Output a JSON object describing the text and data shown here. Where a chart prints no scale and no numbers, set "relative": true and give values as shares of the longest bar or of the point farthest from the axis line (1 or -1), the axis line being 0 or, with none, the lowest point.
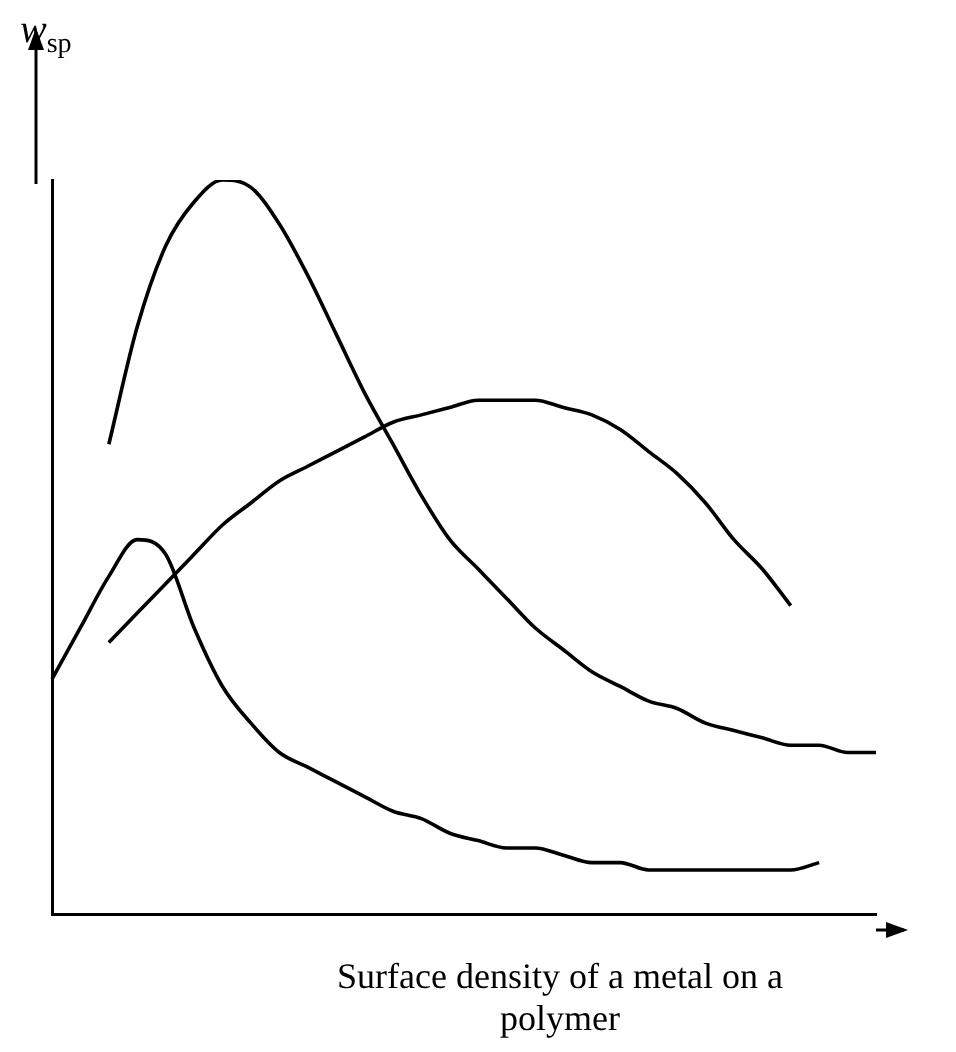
{
  "chart_data": {
    "type": "line",
    "relative": true,
    "tick_labels": false,
    "xlabel": "Surface density of a metal on a polymer",
    "ylabel": "w$_{sp}$",
    "categories": [
      null,
      null,
      null,
      null,
      null,
      null,
      null,
      null,
      null,
      null,
      null,
      null,
      null,
      null,
      null,
      null,
      null,
      null,
      null,
      null,
      null,
      null,
      null,
      null,
      null,
      null,
      null,
      null,
      null,
      null
    ],
    "series": [
      {
        "color": "#000000",
        "values": [
          null,
          null,
          0.64,
          0.8,
          0.91,
          0.97,
          1,
          0.99,
          0.94,
          0.87,
          0.79,
          0.71,
          0.64,
          0.57,
          0.51,
          0.47,
          0.43,
          0.39,
          0.36,
          0.33,
          0.31,
          0.29,
          0.28,
          0.26,
          0.25,
          0.24,
          0.23,
          0.23,
          0.22,
          0.22
        ]
      },
      {
        "color": "#000000",
        "values": [
          null,
          null,
          0.37,
          0.41,
          0.45,
          0.49,
          0.53,
          0.56,
          0.59,
          0.61,
          0.63,
          0.65,
          0.67,
          0.68,
          0.69,
          0.7,
          0.7,
          0.7,
          0.69,
          0.68,
          0.66,
          0.63,
          0.6,
          0.56,
          0.51,
          0.47,
          0.42,
          null,
          null,
          null
        ]
      },
      {
        "color": "#000000",
        "values": [
          0.32,
          0.39,
          0.46,
          0.51,
          0.49,
          0.39,
          0.31,
          0.26,
          0.22,
          0.2,
          0.18,
          0.16,
          0.14,
          0.13,
          0.11,
          0.1,
          0.09,
          0.09,
          0.08,
          0.07,
          0.07,
          0.06,
          0.06,
          0.06,
          0.06,
          0.06,
          0.06,
          0.07,
          null,
          null
        ]
      }
    ]
  }
}
